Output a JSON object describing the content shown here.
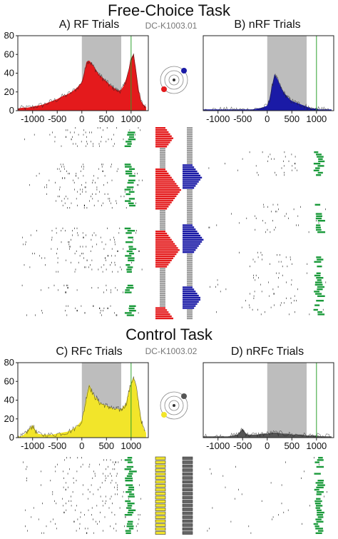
{
  "sections": {
    "top_title": "Free-Choice Task",
    "top_session": "DC-K1003.01",
    "bottom_title": "Control Task",
    "bottom_session": "DC-K1003.02"
  },
  "chart_data": [
    {
      "id": "A",
      "type": "area",
      "title": "A) RF Trials",
      "color": "#e41a1c",
      "ylim": [
        0,
        80
      ],
      "xlim": [
        -1300,
        1350
      ],
      "yticks": [
        "0",
        "20",
        "40",
        "60",
        "80"
      ],
      "xticks": [
        "-1000",
        "-500",
        "0",
        "500",
        "1000"
      ],
      "shaded_window": [
        0,
        800
      ],
      "marker_x": 1000,
      "series": [
        {
          "x": [
            -1300,
            -1200,
            -1100,
            -1000,
            -900,
            -800,
            -700,
            -600,
            -500,
            -400,
            -300,
            -200,
            -100,
            0,
            50,
            100,
            150,
            200,
            250,
            300,
            350,
            400,
            450,
            500,
            550,
            600,
            650,
            700,
            750,
            800,
            850,
            900,
            950,
            1000,
            1050,
            1100,
            1150,
            1200,
            1250,
            1300
          ],
          "values": [
            2,
            3,
            3,
            4,
            5,
            6,
            8,
            10,
            12,
            15,
            17,
            20,
            24,
            30,
            40,
            52,
            53,
            50,
            46,
            42,
            38,
            36,
            33,
            31,
            28,
            26,
            24,
            22,
            21,
            22,
            26,
            33,
            42,
            55,
            60,
            42,
            22,
            10,
            6,
            4
          ]
        }
      ]
    },
    {
      "id": "B",
      "type": "area",
      "title": "B) nRF Trials",
      "color": "#1a1aa6",
      "ylim": [
        0,
        80
      ],
      "xlim": [
        -1300,
        1350
      ],
      "yticks": [],
      "xticks": [
        "-1000",
        "-500",
        "0",
        "500",
        "1000"
      ],
      "shaded_window": [
        0,
        800
      ],
      "marker_x": 1000,
      "series": [
        {
          "x": [
            -1300,
            -1200,
            -1100,
            -1000,
            -900,
            -800,
            -700,
            -600,
            -500,
            -400,
            -300,
            -200,
            -100,
            0,
            50,
            100,
            150,
            200,
            250,
            300,
            350,
            400,
            450,
            500,
            550,
            600,
            650,
            700,
            750,
            800,
            850,
            900,
            950,
            1000,
            1050,
            1100,
            1150,
            1200,
            1250,
            1300
          ],
          "values": [
            1,
            1,
            1,
            1,
            1,
            1,
            1,
            1,
            1,
            1,
            1,
            2,
            3,
            5,
            12,
            26,
            38,
            34,
            28,
            22,
            18,
            15,
            12,
            10,
            9,
            8,
            7,
            6,
            5,
            4,
            3,
            2,
            2,
            2,
            1,
            1,
            1,
            1,
            1,
            1
          ]
        }
      ]
    },
    {
      "id": "C",
      "type": "area",
      "title": "C) RFc Trials",
      "color": "#f2e52a",
      "ylim": [
        0,
        80
      ],
      "xlim": [
        -1300,
        1350
      ],
      "yticks": [
        "0",
        "20",
        "40",
        "60",
        "80"
      ],
      "xticks": [
        "-1000",
        "-500",
        "0",
        "500",
        "1000"
      ],
      "shaded_window": [
        0,
        800
      ],
      "marker_x": 1000,
      "series": [
        {
          "x": [
            -1300,
            -1250,
            -1200,
            -1150,
            -1100,
            -1050,
            -1000,
            -950,
            -900,
            -800,
            -700,
            -600,
            -500,
            -400,
            -300,
            -200,
            -100,
            0,
            50,
            100,
            150,
            200,
            250,
            300,
            350,
            400,
            450,
            500,
            550,
            600,
            650,
            700,
            750,
            800,
            850,
            900,
            950,
            1000,
            1050,
            1100,
            1150,
            1200,
            1250,
            1300
          ],
          "values": [
            1,
            1,
            2,
            4,
            7,
            10,
            13,
            8,
            4,
            3,
            3,
            3,
            4,
            5,
            6,
            8,
            12,
            18,
            30,
            45,
            56,
            50,
            44,
            42,
            38,
            36,
            35,
            34,
            33,
            32,
            30,
            31,
            30,
            30,
            33,
            36,
            48,
            58,
            64,
            55,
            38,
            20,
            10,
            5
          ]
        }
      ]
    },
    {
      "id": "D",
      "type": "area",
      "title": "D) nRFc Trials",
      "color": "#555555",
      "ylim": [
        0,
        80
      ],
      "xlim": [
        -1300,
        1350
      ],
      "yticks": [],
      "xticks": [
        "-1000",
        "-500",
        "0",
        "500",
        "1000"
      ],
      "shaded_window": [
        0,
        800
      ],
      "marker_x": 1000,
      "series": [
        {
          "x": [
            -1300,
            -1200,
            -1100,
            -1000,
            -900,
            -800,
            -700,
            -600,
            -550,
            -500,
            -450,
            -400,
            -300,
            -200,
            -100,
            0,
            100,
            200,
            300,
            400,
            500,
            600,
            700,
            800,
            900,
            1000,
            1100,
            1200,
            1300
          ],
          "values": [
            1,
            1,
            1,
            1,
            1,
            1,
            2,
            3,
            6,
            9,
            5,
            3,
            3,
            3,
            4,
            4,
            5,
            5,
            4,
            4,
            3,
            3,
            3,
            2,
            2,
            2,
            1,
            1,
            1
          ]
        }
      ]
    }
  ]
}
